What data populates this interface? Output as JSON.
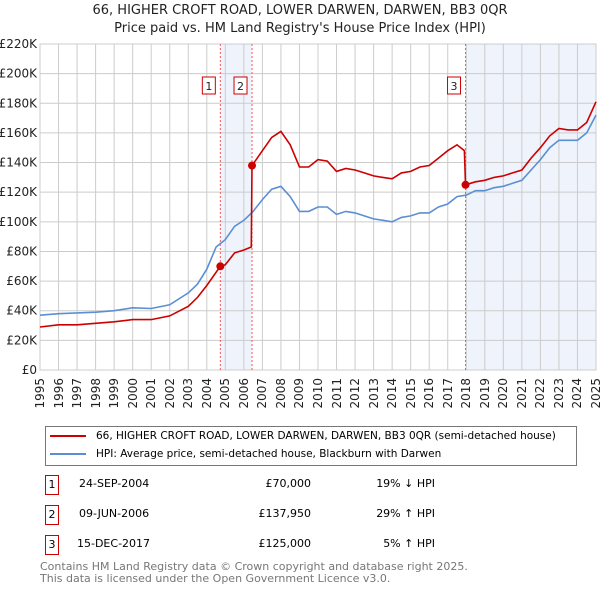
{
  "chart_data": {
    "type": "line",
    "title": "66, HIGHER CROFT ROAD, LOWER DARWEN, DARWEN, BB3 0QR",
    "subtitle": "Price paid vs. HM Land Registry's House Price Index (HPI)",
    "xlim": [
      1995,
      2025
    ],
    "ylim": [
      0,
      220000
    ],
    "y_ticks": [
      {
        "v": 0,
        "label": "£0"
      },
      {
        "v": 20000,
        "label": "£20K"
      },
      {
        "v": 40000,
        "label": "£40K"
      },
      {
        "v": 60000,
        "label": "£60K"
      },
      {
        "v": 80000,
        "label": "£80K"
      },
      {
        "v": 100000,
        "label": "£100K"
      },
      {
        "v": 120000,
        "label": "£120K"
      },
      {
        "v": 140000,
        "label": "£140K"
      },
      {
        "v": 160000,
        "label": "£160K"
      },
      {
        "v": 180000,
        "label": "£180K"
      },
      {
        "v": 200000,
        "label": "£200K"
      },
      {
        "v": 220000,
        "label": "£220K"
      }
    ],
    "x_ticks": [
      "1995",
      "1996",
      "1997",
      "1998",
      "1999",
      "2000",
      "2001",
      "2002",
      "2003",
      "2004",
      "2005",
      "2006",
      "2007",
      "2008",
      "2009",
      "2010",
      "2011",
      "2012",
      "2013",
      "2014",
      "2015",
      "2016",
      "2017",
      "2018",
      "2019",
      "2020",
      "2021",
      "2022",
      "2023",
      "2024",
      "2025"
    ],
    "grid": true,
    "series": [
      {
        "name": "66, HIGHER CROFT ROAD, LOWER DARWEN, DARWEN, BB3 0QR (semi-detached house)",
        "color": "#cc0000",
        "x": [
          1995,
          1996,
          1997,
          1998,
          1999,
          2000,
          2001,
          2002,
          2003,
          2003.5,
          2004,
          2004.73,
          2005,
          2005.5,
          2006,
          2006.4,
          2006.44,
          2007,
          2007.5,
          2008,
          2008.5,
          2009,
          2009.5,
          2010,
          2010.5,
          2011,
          2011.5,
          2012,
          2012.5,
          2013,
          2013.5,
          2014,
          2014.5,
          2015,
          2015.5,
          2016,
          2016.5,
          2017,
          2017.5,
          2017.9,
          2017.96,
          2018.5,
          2019,
          2019.5,
          2020,
          2020.5,
          2021,
          2021.5,
          2022,
          2022.5,
          2023,
          2023.5,
          2024,
          2024.5,
          2025
        ],
        "y": [
          29000,
          30500,
          30500,
          31500,
          32500,
          34000,
          34000,
          36500,
          43000,
          49000,
          57000,
          70000,
          71000,
          79000,
          81000,
          83000,
          137950,
          148000,
          157000,
          161000,
          152000,
          137000,
          137000,
          142000,
          141000,
          134000,
          136000,
          135000,
          133000,
          131000,
          130000,
          129000,
          133000,
          134000,
          137000,
          138000,
          143000,
          148000,
          152000,
          148000,
          125000,
          127000,
          128000,
          130000,
          131000,
          133000,
          135000,
          143000,
          150000,
          158000,
          163000,
          162000,
          162000,
          167000,
          181000
        ]
      },
      {
        "name": "HPI: Average price, semi-detached house, Blackburn with Darwen",
        "color": "#5b8fd4",
        "x": [
          1995,
          1996,
          1997,
          1998,
          1999,
          2000,
          2001,
          2002,
          2003,
          2003.5,
          2004,
          2004.5,
          2005,
          2005.5,
          2006,
          2006.5,
          2007,
          2007.5,
          2008,
          2008.5,
          2009,
          2009.5,
          2010,
          2010.5,
          2011,
          2011.5,
          2012,
          2012.5,
          2013,
          2013.5,
          2014,
          2014.5,
          2015,
          2015.5,
          2016,
          2016.5,
          2017,
          2017.5,
          2018,
          2018.5,
          2019,
          2019.5,
          2020,
          2020.5,
          2021,
          2021.5,
          2022,
          2022.5,
          2023,
          2023.5,
          2024,
          2024.5,
          2025
        ],
        "y": [
          37000,
          38000,
          38500,
          39000,
          40000,
          42000,
          41500,
          44000,
          52000,
          58000,
          68000,
          83000,
          88000,
          97000,
          101000,
          107000,
          115000,
          122000,
          124000,
          117000,
          107000,
          107000,
          110000,
          110000,
          105000,
          107000,
          106000,
          104000,
          102000,
          101000,
          100000,
          103000,
          104000,
          106000,
          106000,
          110000,
          112000,
          117000,
          118000,
          121000,
          121000,
          123000,
          124000,
          126000,
          128000,
          135000,
          142000,
          150000,
          155000,
          155000,
          155000,
          160000,
          172000
        ]
      }
    ],
    "sales": [
      {
        "label": "1",
        "x": 2004.73,
        "y": 70000,
        "date": "24-SEP-2004",
        "price": "£70,000",
        "hpi": "19% ↓ HPI"
      },
      {
        "label": "2",
        "x": 2006.44,
        "y": 137950,
        "date": "09-JUN-2006",
        "price": "£137,950",
        "hpi": "29% ↑ HPI"
      },
      {
        "label": "3",
        "x": 2017.96,
        "y": 125000,
        "date": "15-DEC-2017",
        "price": "£125,000",
        "hpi": "5% ↑ HPI"
      }
    ],
    "legend": {
      "placement": "bottom"
    }
  },
  "footer": {
    "line1": "Contains HM Land Registry data © Crown copyright and database right 2025.",
    "line2": "This data is licensed under the Open Government Licence v3.0."
  }
}
